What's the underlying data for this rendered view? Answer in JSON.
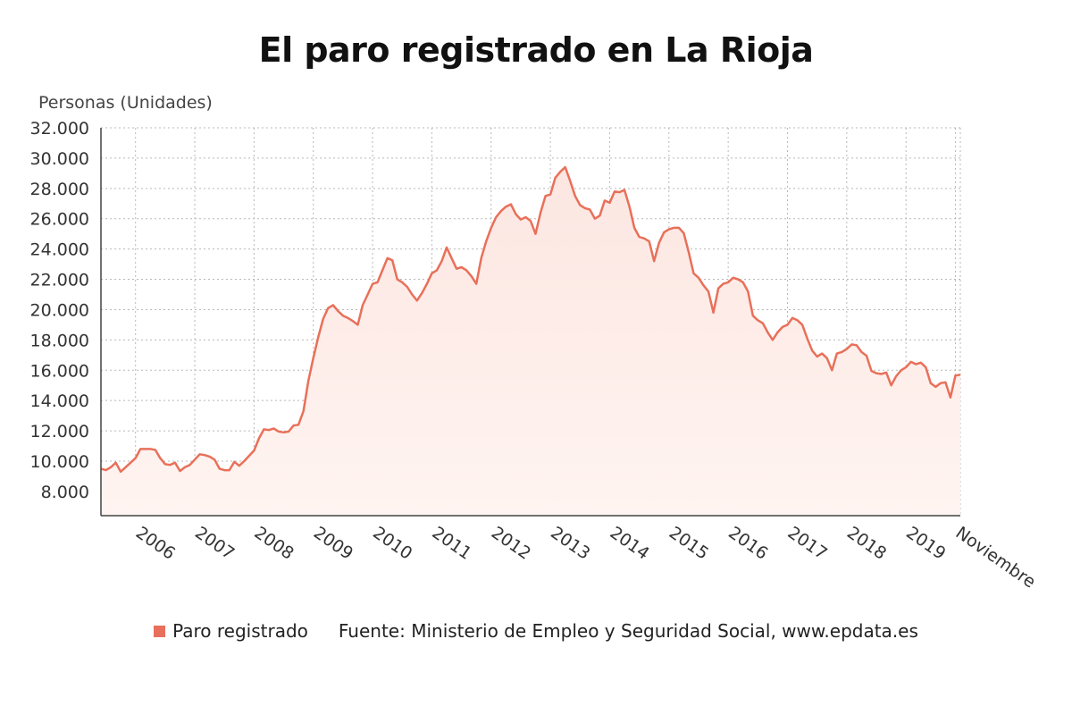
{
  "colors": {
    "line": "#e8705a",
    "fill_top": "#fce6e1",
    "fill_bottom": "#fff4f1",
    "grid": "#b8b8b8",
    "axis": "#444444"
  },
  "chart_data": {
    "type": "area",
    "title": "El paro registrado en La Rioja",
    "ylabel": "Personas (Unidades)",
    "xlabel": "",
    "ylim": [
      6400,
      32000
    ],
    "yticks": [
      8000,
      10000,
      12000,
      14000,
      16000,
      18000,
      20000,
      22000,
      24000,
      26000,
      28000,
      30000,
      32000
    ],
    "ytick_labels": [
      "8.000",
      "10.000",
      "12.000",
      "14.000",
      "16.000",
      "18.000",
      "20.000",
      "22.000",
      "24.000",
      "26.000",
      "28.000",
      "30.000",
      "32.000"
    ],
    "xticks": [
      {
        "label": "2006",
        "index": 7
      },
      {
        "label": "2007",
        "index": 19
      },
      {
        "label": "2008",
        "index": 31
      },
      {
        "label": "2009",
        "index": 43
      },
      {
        "label": "2010",
        "index": 55
      },
      {
        "label": "2011",
        "index": 67
      },
      {
        "label": "2012",
        "index": 79
      },
      {
        "label": "2013",
        "index": 91
      },
      {
        "label": "2014",
        "index": 103
      },
      {
        "label": "2015",
        "index": 115
      },
      {
        "label": "2016",
        "index": 127
      },
      {
        "label": "2017",
        "index": 139
      },
      {
        "label": "2018",
        "index": 151
      },
      {
        "label": "2019",
        "index": 163
      },
      {
        "label": "Noviembre",
        "index": 173
      }
    ],
    "grid": true,
    "series": [
      {
        "name": "Paro registrado",
        "values": [
          9500,
          9400,
          9600,
          9900,
          9300,
          9600,
          9900,
          10200,
          10800,
          10800,
          10800,
          10750,
          10200,
          9800,
          9750,
          9900,
          9350,
          9600,
          9750,
          10100,
          10450,
          10400,
          10300,
          10100,
          9500,
          9400,
          9400,
          9950,
          9700,
          10000,
          10350,
          10700,
          11500,
          12100,
          12050,
          12150,
          11950,
          11900,
          11950,
          12350,
          12400,
          13300,
          15300,
          16800,
          18200,
          19400,
          20100,
          20300,
          19900,
          19600,
          19450,
          19250,
          19000,
          20300,
          21000,
          21700,
          21800,
          22600,
          23400,
          23250,
          22000,
          21800,
          21500,
          21000,
          20600,
          21100,
          21700,
          22400,
          22600,
          23200,
          24100,
          23400,
          22700,
          22800,
          22600,
          22200,
          21700,
          23400,
          24500,
          25400,
          26100,
          26500,
          26800,
          26950,
          26300,
          25950,
          26100,
          25850,
          25000,
          26400,
          27500,
          27600,
          28700,
          29100,
          29400,
          28500,
          27500,
          26900,
          26700,
          26600,
          26000,
          26200,
          27200,
          27050,
          27800,
          27750,
          27900,
          26800,
          25400,
          24800,
          24700,
          24500,
          23200,
          24400,
          25100,
          25300,
          25400,
          25400,
          25050,
          23800,
          22400,
          22100,
          21600,
          21200,
          19800,
          21400,
          21700,
          21800,
          22100,
          22000,
          21800,
          21200,
          19600,
          19300,
          19100,
          18500,
          18000,
          18500,
          18850,
          19000,
          19450,
          19300,
          19000,
          18100,
          17300,
          16900,
          17100,
          16800,
          16000,
          17100,
          17200,
          17400,
          17700,
          17650,
          17200,
          16950,
          15950,
          15800,
          15750,
          15850,
          15000,
          15600,
          16000,
          16200,
          16550,
          16400,
          16500,
          16200,
          15150,
          14900,
          15150,
          15200,
          14200,
          15650,
          15700
        ]
      }
    ],
    "legend": "bottom",
    "source": "Fuente: Ministerio de Empleo y Seguridad Social, www.epdata.es"
  }
}
